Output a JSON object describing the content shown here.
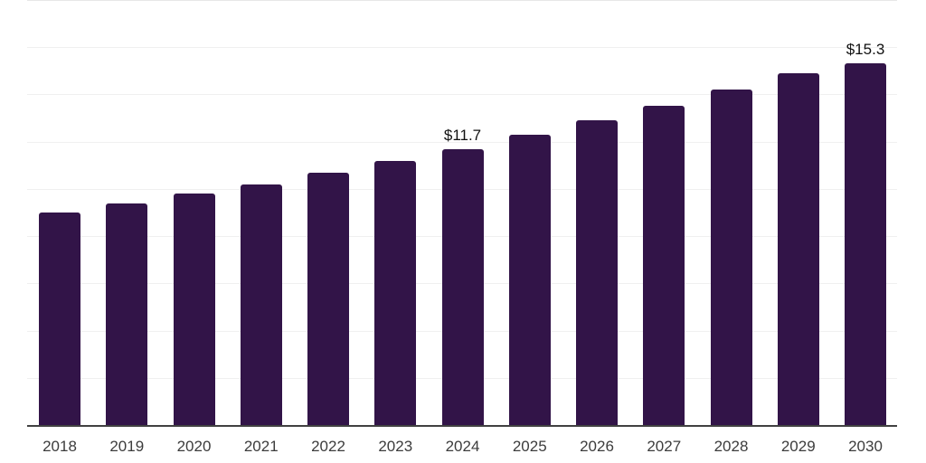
{
  "chart_data": {
    "type": "bar",
    "title": "",
    "xlabel": "",
    "ylabel": "",
    "categories": [
      "2018",
      "2019",
      "2020",
      "2021",
      "2022",
      "2023",
      "2024",
      "2025",
      "2026",
      "2027",
      "2028",
      "2029",
      "2030"
    ],
    "values": [
      9.0,
      9.4,
      9.8,
      10.2,
      10.7,
      11.2,
      11.7,
      12.3,
      12.9,
      13.5,
      14.2,
      14.9,
      15.3
    ],
    "value_labels": [
      {
        "category": "2024",
        "text": "$11.7"
      },
      {
        "category": "2030",
        "text": "$15.3"
      }
    ],
    "ylim": [
      0,
      18
    ],
    "grid_step": 2,
    "grid": "horizontal",
    "y_tick_labels_shown": false,
    "legend": false,
    "colors": {
      "bar": "#321448",
      "axis_line": "#414141",
      "gridline": "#f0f0f0",
      "top_gridline": "#e7e7e7",
      "tick_label": "#3c3c3c",
      "value_label": "#111111",
      "background": "#ffffff"
    }
  }
}
